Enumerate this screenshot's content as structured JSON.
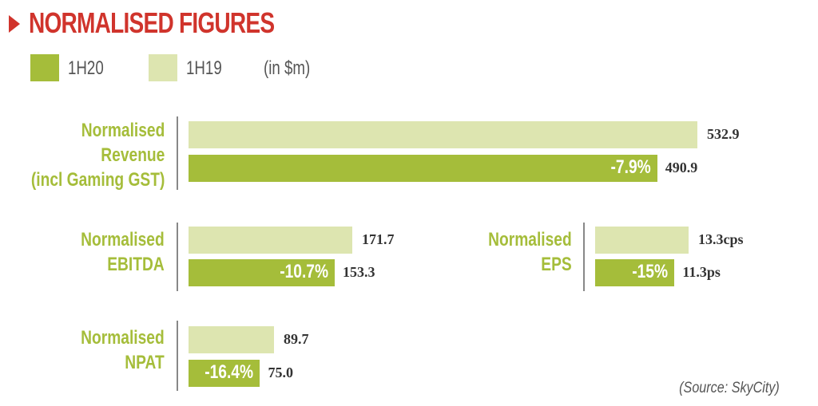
{
  "title": "NORMALISED FIGURES",
  "legend": {
    "current": "1H20",
    "previous": "1H19",
    "unit": "(in $m)"
  },
  "colors": {
    "current": "#a5bd3a",
    "previous": "#dde5b0",
    "title": "#d0342c"
  },
  "source": "(Source: SkyCity)",
  "chart_data": {
    "type": "bar",
    "series": [
      {
        "name": "1H20"
      },
      {
        "name": "1H19"
      }
    ],
    "metrics": [
      {
        "label_lines": [
          "Normalised",
          "Revenue",
          "(incl Gaming GST)"
        ],
        "value_1H19": 532.9,
        "value_1H20": 490.9,
        "label_1H19": "532.9",
        "label_1H20": "490.9",
        "change": "-7.9%"
      },
      {
        "label_lines": [
          "Normalised",
          "EBITDA"
        ],
        "value_1H19": 171.7,
        "value_1H20": 153.3,
        "label_1H19": "171.7",
        "label_1H20": "153.3",
        "change": "-10.7%"
      },
      {
        "label_lines": [
          "Normalised",
          "EPS"
        ],
        "value_1H19": 13.3,
        "value_1H20": 11.3,
        "label_1H19": "13.3cps",
        "label_1H20": "11.3ps",
        "change": "-15%"
      },
      {
        "label_lines": [
          "Normalised",
          "NPAT"
        ],
        "value_1H19": 89.7,
        "value_1H20": 75.0,
        "label_1H19": "89.7",
        "label_1H20": "75.0",
        "change": "-16.4%"
      }
    ]
  }
}
